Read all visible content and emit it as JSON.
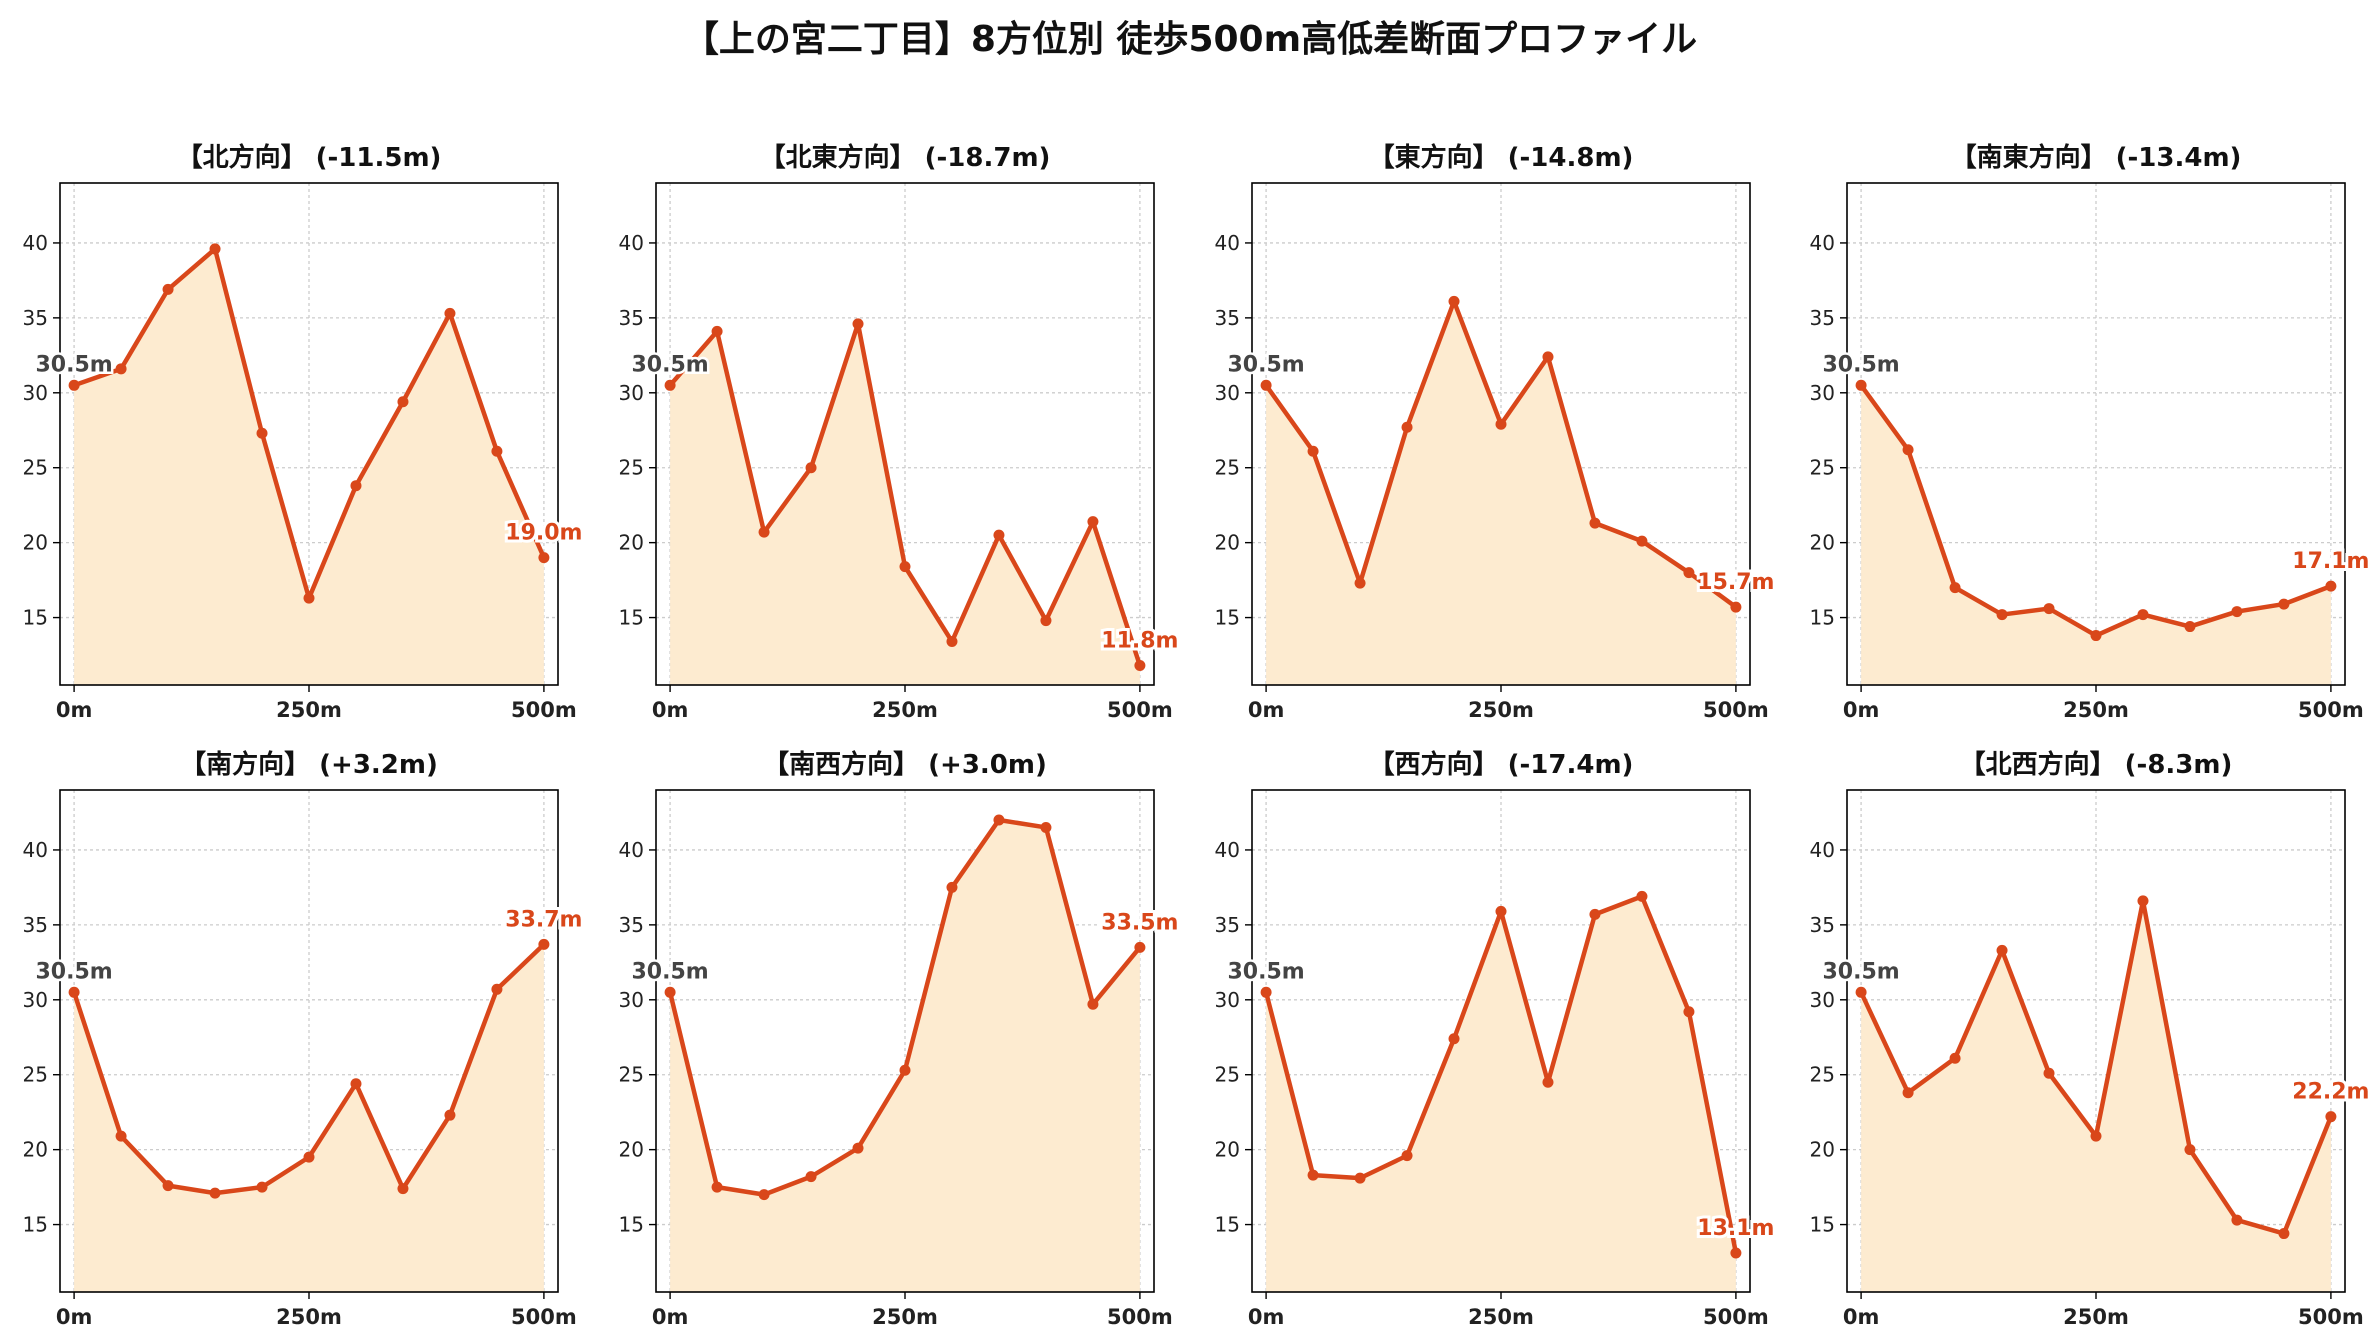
{
  "title": "【上の宮二丁目】8方位別 徒歩500m高低差断面プロファイル",
  "colors": {
    "line": "#d9471a",
    "fill": "#fdebd0",
    "end_label": "#d9471a",
    "start_label": "#444444",
    "grid": "#cccccc"
  },
  "chart_data": [
    {
      "type": "area",
      "title": "【北方向】 (-11.5m)",
      "x": [
        0,
        50,
        100,
        150,
        200,
        250,
        300,
        350,
        400,
        450,
        500
      ],
      "values": [
        30.5,
        31.6,
        36.9,
        39.6,
        27.3,
        16.3,
        23.8,
        29.4,
        35.3,
        26.1,
        19.0
      ],
      "xticks": [
        "0m",
        "250m",
        "500m"
      ],
      "yticks": [
        "15",
        "20",
        "25",
        "30",
        "35",
        "40"
      ],
      "start_label": "30.5m",
      "end_label": "19.0m",
      "xlim": [
        -15,
        515
      ],
      "ylim": [
        10.5,
        44
      ],
      "grid": true
    },
    {
      "type": "area",
      "title": "【北東方向】 (-18.7m)",
      "x": [
        0,
        50,
        100,
        150,
        200,
        250,
        300,
        350,
        400,
        450,
        500
      ],
      "values": [
        30.5,
        34.1,
        20.7,
        25.0,
        34.6,
        18.4,
        13.4,
        20.5,
        14.8,
        21.4,
        11.8
      ],
      "xticks": [
        "0m",
        "250m",
        "500m"
      ],
      "yticks": [
        "15",
        "20",
        "25",
        "30",
        "35",
        "40"
      ],
      "start_label": "30.5m",
      "end_label": "11.8m",
      "xlim": [
        -15,
        515
      ],
      "ylim": [
        10.5,
        44
      ],
      "grid": true
    },
    {
      "type": "area",
      "title": "【東方向】 (-14.8m)",
      "x": [
        0,
        50,
        100,
        150,
        200,
        250,
        300,
        350,
        400,
        450,
        500
      ],
      "values": [
        30.5,
        26.1,
        17.3,
        27.7,
        36.1,
        27.9,
        32.4,
        21.3,
        20.1,
        18.0,
        15.7
      ],
      "xticks": [
        "0m",
        "250m",
        "500m"
      ],
      "yticks": [
        "15",
        "20",
        "25",
        "30",
        "35",
        "40"
      ],
      "start_label": "30.5m",
      "end_label": "15.7m",
      "xlim": [
        -15,
        515
      ],
      "ylim": [
        10.5,
        44
      ],
      "grid": true
    },
    {
      "type": "area",
      "title": "【南東方向】 (-13.4m)",
      "x": [
        0,
        50,
        100,
        150,
        200,
        250,
        300,
        350,
        400,
        450,
        500
      ],
      "values": [
        30.5,
        26.2,
        17.0,
        15.2,
        15.6,
        13.8,
        15.2,
        14.4,
        15.4,
        15.9,
        17.1
      ],
      "xticks": [
        "0m",
        "250m",
        "500m"
      ],
      "yticks": [
        "15",
        "20",
        "25",
        "30",
        "35",
        "40"
      ],
      "start_label": "30.5m",
      "end_label": "17.1m",
      "xlim": [
        -15,
        515
      ],
      "ylim": [
        10.5,
        44
      ],
      "grid": true
    },
    {
      "type": "area",
      "title": "【南方向】 (+3.2m)",
      "x": [
        0,
        50,
        100,
        150,
        200,
        250,
        300,
        350,
        400,
        450,
        500
      ],
      "values": [
        30.5,
        20.9,
        17.6,
        17.1,
        17.5,
        19.5,
        24.4,
        17.4,
        22.3,
        30.7,
        33.7
      ],
      "xticks": [
        "0m",
        "250m",
        "500m"
      ],
      "yticks": [
        "15",
        "20",
        "25",
        "30",
        "35",
        "40"
      ],
      "start_label": "30.5m",
      "end_label": "33.7m",
      "xlim": [
        -15,
        515
      ],
      "ylim": [
        10.5,
        44
      ],
      "grid": true
    },
    {
      "type": "area",
      "title": "【南西方向】 (+3.0m)",
      "x": [
        0,
        50,
        100,
        150,
        200,
        250,
        300,
        350,
        400,
        450,
        500
      ],
      "values": [
        30.5,
        17.5,
        17.0,
        18.2,
        20.1,
        25.3,
        37.5,
        42.0,
        41.5,
        29.7,
        33.5
      ],
      "xticks": [
        "0m",
        "250m",
        "500m"
      ],
      "yticks": [
        "15",
        "20",
        "25",
        "30",
        "35",
        "40"
      ],
      "start_label": "30.5m",
      "end_label": "33.5m",
      "xlim": [
        -15,
        515
      ],
      "ylim": [
        10.5,
        44
      ],
      "grid": true
    },
    {
      "type": "area",
      "title": "【西方向】 (-17.4m)",
      "x": [
        0,
        50,
        100,
        150,
        200,
        250,
        300,
        350,
        400,
        450,
        500
      ],
      "values": [
        30.5,
        18.3,
        18.1,
        19.6,
        27.4,
        35.9,
        24.5,
        35.7,
        36.9,
        29.2,
        13.1
      ],
      "xticks": [
        "0m",
        "250m",
        "500m"
      ],
      "yticks": [
        "15",
        "20",
        "25",
        "30",
        "35",
        "40"
      ],
      "start_label": "30.5m",
      "end_label": "13.1m",
      "xlim": [
        -15,
        515
      ],
      "ylim": [
        10.5,
        44
      ],
      "grid": true
    },
    {
      "type": "area",
      "title": "【北西方向】 (-8.3m)",
      "x": [
        0,
        50,
        100,
        150,
        200,
        250,
        300,
        350,
        400,
        450,
        500
      ],
      "values": [
        30.5,
        23.8,
        26.1,
        33.3,
        25.1,
        20.9,
        36.6,
        20.0,
        15.3,
        14.4,
        22.2
      ],
      "xticks": [
        "0m",
        "250m",
        "500m"
      ],
      "yticks": [
        "15",
        "20",
        "25",
        "30",
        "35",
        "40"
      ],
      "start_label": "30.5m",
      "end_label": "22.2m",
      "xlim": [
        -15,
        515
      ],
      "ylim": [
        10.5,
        44
      ],
      "grid": true
    }
  ]
}
